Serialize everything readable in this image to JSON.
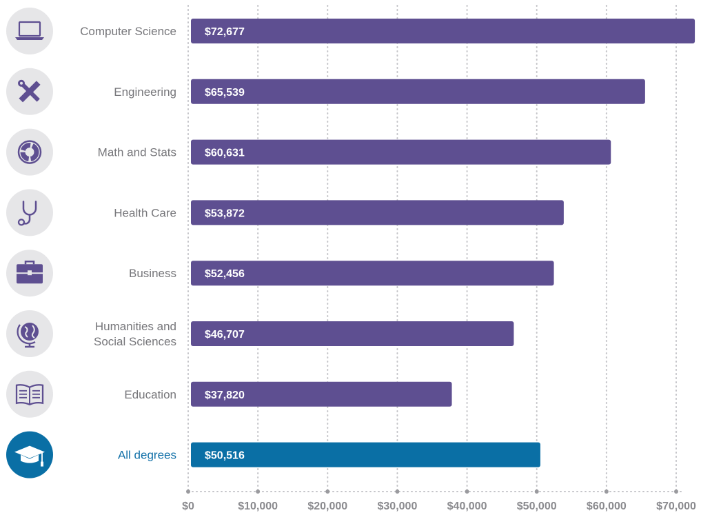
{
  "chart_data": {
    "type": "bar",
    "orientation": "horizontal",
    "categories": [
      "Computer Science",
      "Engineering",
      "Math and Stats",
      "Health Care",
      "Business",
      "Humanities and Social Sciences",
      "Education",
      "All degrees"
    ],
    "category_lines": [
      [
        "Computer Science"
      ],
      [
        "Engineering"
      ],
      [
        "Math and Stats"
      ],
      [
        "Health Care"
      ],
      [
        "Business"
      ],
      [
        "Humanities and",
        "Social Sciences"
      ],
      [
        "Education"
      ],
      [
        "All degrees"
      ]
    ],
    "icons": [
      "laptop-icon",
      "ruler-wrench-icon",
      "pie-chart-icon",
      "stethoscope-icon",
      "briefcase-icon",
      "globe-icon",
      "open-book-icon",
      "graduation-cap-icon"
    ],
    "values": [
      72677,
      65539,
      60631,
      53872,
      52456,
      46707,
      37820,
      50516
    ],
    "value_labels": [
      "$72,677",
      "$65,539",
      "$60,631",
      "$53,872",
      "$52,456",
      "$46,707",
      "$37,820",
      "$50,516"
    ],
    "highlight_index": 7,
    "xlim": [
      0,
      70000
    ],
    "xticks": [
      0,
      10000,
      20000,
      30000,
      40000,
      50000,
      60000,
      70000
    ],
    "xtick_labels": [
      "$0",
      "$10,000",
      "$20,000",
      "$30,000",
      "$40,000",
      "$50,000",
      "$60,000",
      "$70,000"
    ],
    "grid": "vertical dotted",
    "title": "",
    "xlabel": "",
    "ylabel": ""
  },
  "colors": {
    "bar": "#5e4f91",
    "highlight_bar": "#0a6fa5",
    "icon_circle": "#e6e6e8",
    "icon_fill": "#5e4f91",
    "highlight_icon_circle": "#0a6fa5",
    "highlight_icon_fill": "#ffffff",
    "grid": "#c4c4c8",
    "label": "#76767a",
    "highlight_label": "#1170a8",
    "tick": "#8a8a8e"
  }
}
